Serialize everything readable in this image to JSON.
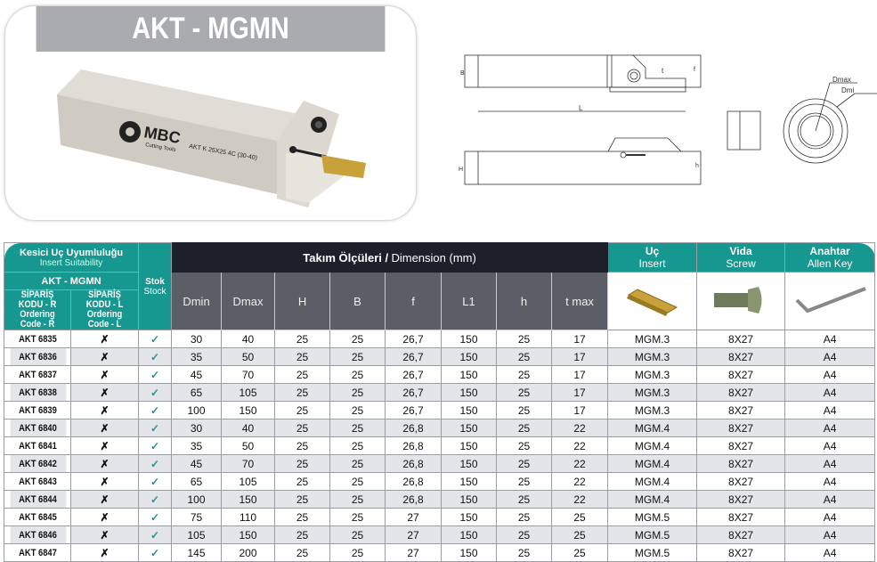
{
  "title": "AKT - MGMN",
  "product_image": {
    "brand": "MBC",
    "brand_sub": "Cutting Tools",
    "engraving": "AKT K 25X25 4C (30-40)"
  },
  "drawing_labels": {
    "B": "B",
    "L": "L",
    "t": "t",
    "f": "f",
    "H": "H",
    "h": "h",
    "Dmax": "Dmax",
    "Dmin": "Dmi"
  },
  "colors": {
    "teal": "#16978f",
    "dark": "#1d202b",
    "gray_header": "#5b5e66",
    "card_title": "#a9abae"
  },
  "table": {
    "insert_suitability_tr": "Kesici Uç Uyumluluğu",
    "insert_suitability_en": "Insert Suitability",
    "group": "AKT - MGMN",
    "code_r_tr": "SİPARİŞ KODU - R",
    "code_r_en": "Ordering Code - R",
    "code_l_tr": "SİPARİŞ KODU - L",
    "code_l_en": "Ordering Code - L",
    "stock_tr": "Stok",
    "stock_en": "Stock",
    "dimension_tr": "Takım Ölçüleri /",
    "dimension_en": "Dimension (mm)",
    "insert_tr": "Uç",
    "insert_en": "Insert",
    "screw_tr": "Vida",
    "screw_en": "Screw",
    "key_tr": "Anahtar",
    "key_en": "Allen Key",
    "dim_headers": [
      "Dmin",
      "Dmax",
      "H",
      "B",
      "f",
      "L1",
      "h",
      "t max"
    ],
    "icons": {
      "insert": "grooving-insert-image",
      "screw": "screw-image",
      "key": "allen-key-image"
    },
    "rows": [
      [
        "AKT 6835",
        "✗",
        "✓",
        "30",
        "40",
        "25",
        "25",
        "26,7",
        "150",
        "25",
        "17",
        "MGM.3",
        "8X27",
        "A4"
      ],
      [
        "AKT 6836",
        "✗",
        "✓",
        "35",
        "50",
        "25",
        "25",
        "26,7",
        "150",
        "25",
        "17",
        "MGM.3",
        "8X27",
        "A4"
      ],
      [
        "AKT 6837",
        "✗",
        "✓",
        "45",
        "70",
        "25",
        "25",
        "26,7",
        "150",
        "25",
        "17",
        "MGM.3",
        "8X27",
        "A4"
      ],
      [
        "AKT 6838",
        "✗",
        "✓",
        "65",
        "105",
        "25",
        "25",
        "26,7",
        "150",
        "25",
        "17",
        "MGM.3",
        "8X27",
        "A4"
      ],
      [
        "AKT 6839",
        "✗",
        "✓",
        "100",
        "150",
        "25",
        "25",
        "26,7",
        "150",
        "25",
        "17",
        "MGM.3",
        "8X27",
        "A4"
      ],
      [
        "AKT 6840",
        "✗",
        "✓",
        "30",
        "40",
        "25",
        "25",
        "26,8",
        "150",
        "25",
        "22",
        "MGM.4",
        "8X27",
        "A4"
      ],
      [
        "AKT 6841",
        "✗",
        "✓",
        "35",
        "50",
        "25",
        "25",
        "26,8",
        "150",
        "25",
        "22",
        "MGM.4",
        "8X27",
        "A4"
      ],
      [
        "AKT 6842",
        "✗",
        "✓",
        "45",
        "70",
        "25",
        "25",
        "26,8",
        "150",
        "25",
        "22",
        "MGM.4",
        "8X27",
        "A4"
      ],
      [
        "AKT 6843",
        "✗",
        "✓",
        "65",
        "105",
        "25",
        "25",
        "26,8",
        "150",
        "25",
        "22",
        "MGM.4",
        "8X27",
        "A4"
      ],
      [
        "AKT 6844",
        "✗",
        "✓",
        "100",
        "150",
        "25",
        "25",
        "26,8",
        "150",
        "25",
        "22",
        "MGM.4",
        "8X27",
        "A4"
      ],
      [
        "AKT 6845",
        "✗",
        "✓",
        "75",
        "110",
        "25",
        "25",
        "27",
        "150",
        "25",
        "25",
        "MGM.5",
        "8X27",
        "A4"
      ],
      [
        "AKT 6846",
        "✗",
        "✓",
        "105",
        "150",
        "25",
        "25",
        "27",
        "150",
        "25",
        "25",
        "MGM.5",
        "8X27",
        "A4"
      ],
      [
        "AKT 6847",
        "✗",
        "✓",
        "145",
        "200",
        "25",
        "25",
        "27",
        "150",
        "25",
        "25",
        "MGM.5",
        "8X27",
        "A4"
      ]
    ]
  }
}
